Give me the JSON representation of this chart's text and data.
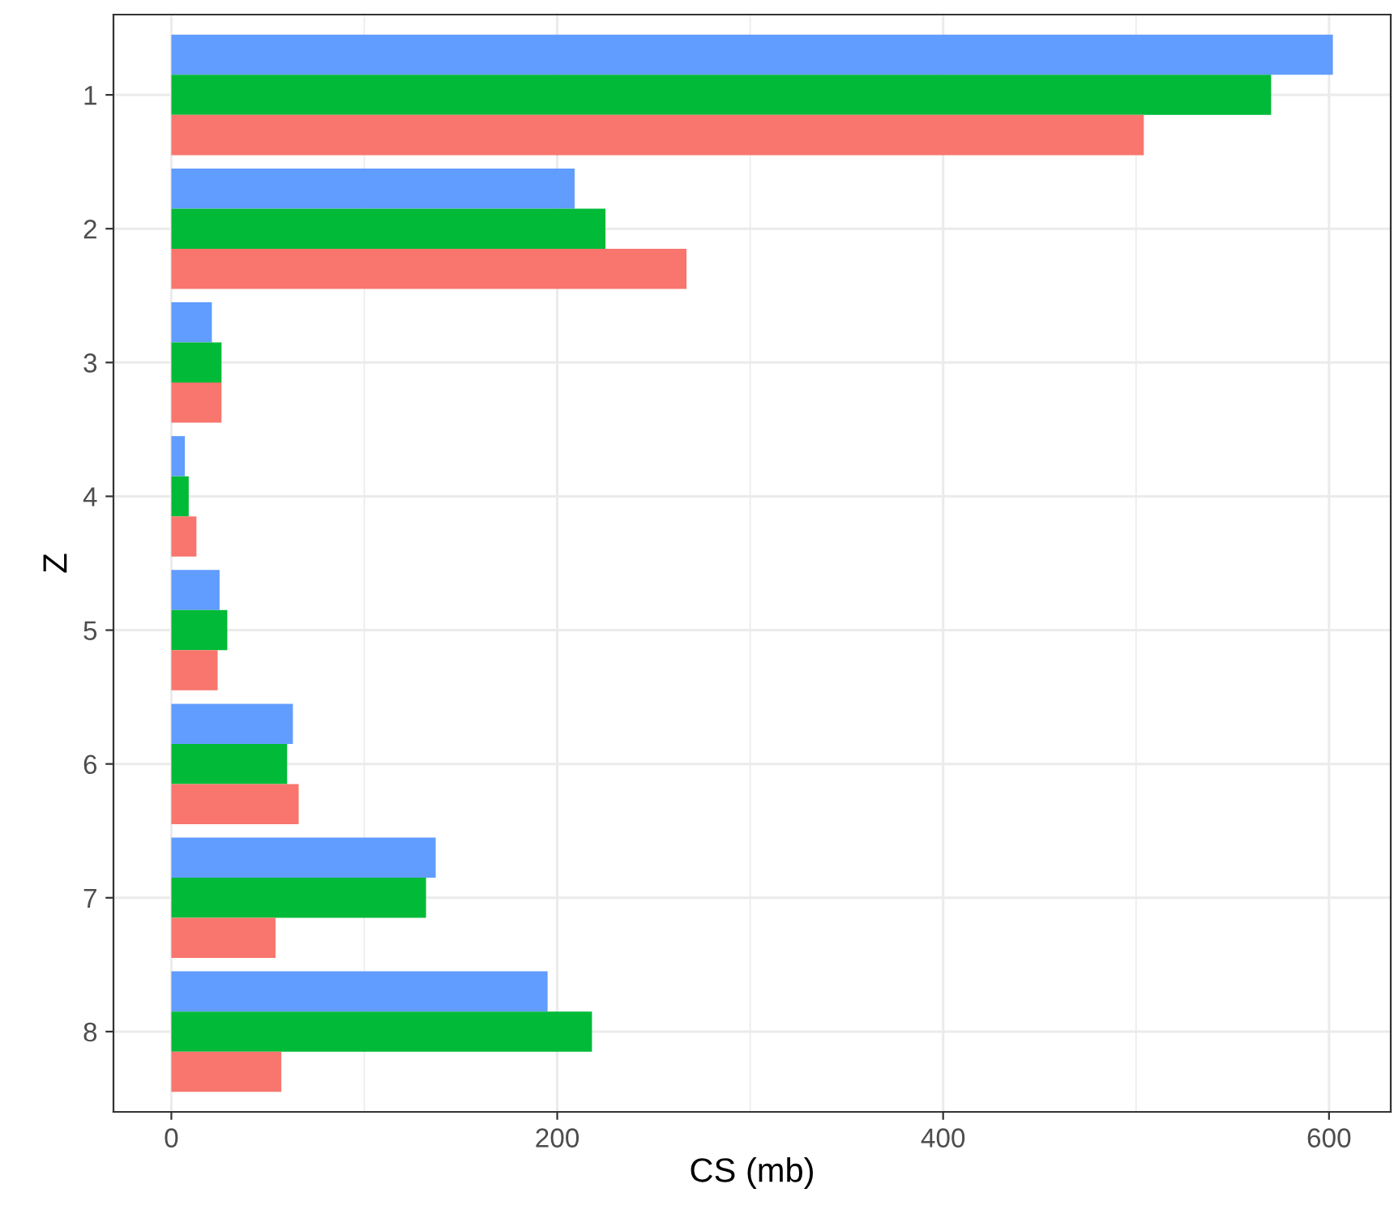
{
  "chart_data": {
    "type": "bar",
    "orientation": "horizontal",
    "xlabel": "CS (mb)",
    "ylabel": "Z",
    "categories": [
      "1",
      "2",
      "3",
      "4",
      "5",
      "6",
      "7",
      "8"
    ],
    "series": [
      {
        "color": "#619cff",
        "values": [
          602,
          209,
          21,
          7,
          25,
          63,
          137,
          195
        ]
      },
      {
        "color": "#00ba38",
        "values": [
          570,
          225,
          26,
          9,
          29,
          60,
          132,
          218
        ]
      },
      {
        "color": "#f8766d",
        "values": [
          504,
          267,
          26,
          13,
          24,
          66,
          54,
          57
        ]
      }
    ],
    "xlim": [
      -30,
      632
    ],
    "xticks": [
      0,
      {
        "value": 100,
        "label": null
      },
      200,
      {
        "value": 300,
        "label": null
      },
      400,
      {
        "value": 500,
        "label": null
      },
      600
    ],
    "grid": true,
    "legend": false
  }
}
